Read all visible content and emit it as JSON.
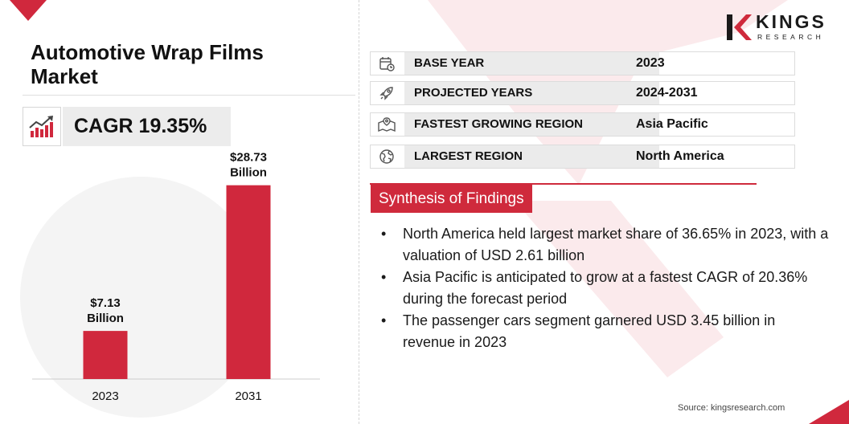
{
  "title": "Automotive Wrap Films Market",
  "cagr": {
    "label": "CAGR 19.35%",
    "icon": "growth-chart-icon"
  },
  "brand": {
    "name": "KINGS",
    "sub": "RESEARCH",
    "accent": "#cf2a3c"
  },
  "stats": [
    {
      "icon": "calendar-icon",
      "label": "BASE YEAR",
      "value": "2023"
    },
    {
      "icon": "rocket-icon",
      "label": "PROJECTED YEARS",
      "value": "2024-2031"
    },
    {
      "icon": "map-icon",
      "label": "FASTEST GROWING REGION",
      "value": "Asia Pacific"
    },
    {
      "icon": "globe-icon",
      "label": "LARGEST REGION",
      "value": "North America"
    }
  ],
  "synthesis": {
    "title": "Synthesis of Findings",
    "items": [
      "North America held largest market share of 36.65% in 2023, with a valuation of USD 2.61 billion",
      "Asia Pacific is anticipated to grow at a fastest CAGR of 20.36% during the forecast period",
      "The passenger cars segment garnered USD 3.45 billion in revenue in 2023"
    ]
  },
  "source": "Source: kingsresearch.com",
  "chart_data": {
    "type": "bar",
    "categories": [
      "2023",
      "2031"
    ],
    "values": [
      7.13,
      28.73
    ],
    "data_labels": [
      [
        "$7.13",
        "Billion"
      ],
      [
        "$28.73",
        "Billion"
      ]
    ],
    "unit": "USD Billion",
    "ylim": [
      0,
      30
    ],
    "grid": false,
    "bar_color": "#d0283d"
  }
}
